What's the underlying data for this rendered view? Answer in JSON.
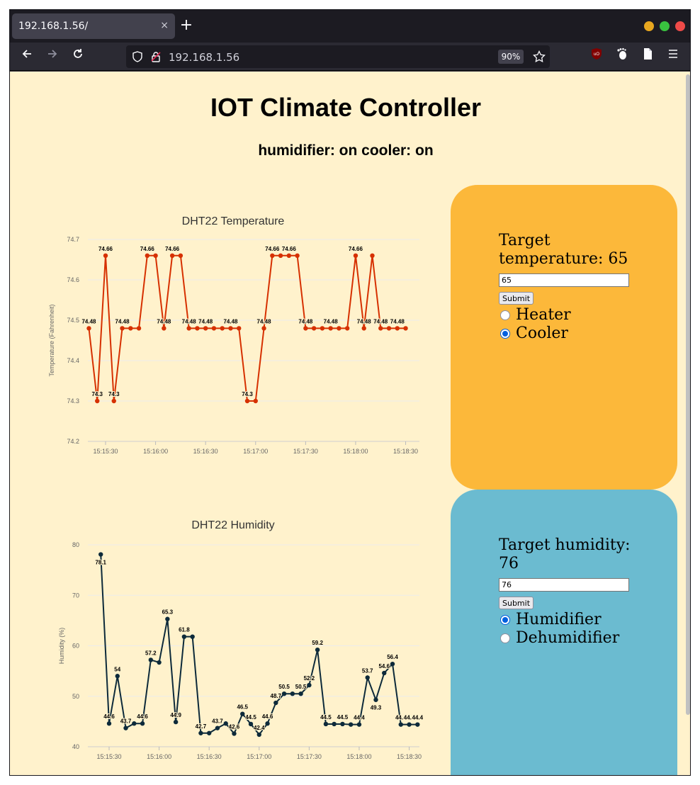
{
  "browser": {
    "tab_title": "192.168.1.56/",
    "tab_close": "×",
    "new_tab": "+",
    "url": "192.168.1.56",
    "zoom": "90%",
    "traffic_colors": [
      "#e8a71f",
      "#39c13f",
      "#ee4a48"
    ]
  },
  "page": {
    "title": "IOT Climate Controller",
    "status": "humidifier: on cooler: on",
    "background": "#fff2cc"
  },
  "temperature_panel": {
    "color": "#fcb83a",
    "label": "Target temperature: 65",
    "input_value": "65",
    "submit_label": "Submit",
    "options": [
      {
        "label": "Heater",
        "checked": false
      },
      {
        "label": "Cooler",
        "checked": true
      }
    ]
  },
  "humidity_panel": {
    "color": "#6bbbd0",
    "label": "Target humidity: 76",
    "input_value": "76",
    "submit_label": "Submit",
    "options": [
      {
        "label": "Humidifier",
        "checked": true
      },
      {
        "label": "Dehumidifier",
        "checked": false
      }
    ]
  },
  "chart_data": [
    {
      "type": "line",
      "title": "DHT22 Temperature",
      "ylabel": "Temperature (Fahrenheit)",
      "color": "#d63000",
      "ylim": [
        74.2,
        74.7
      ],
      "yticks": [
        "74.2",
        "74.3",
        "74.4",
        "74.5",
        "74.6",
        "74.7"
      ],
      "xticks": [
        "15:15:30",
        "15:16:00",
        "15:16:30",
        "15:17:00",
        "15:17:30",
        "15:18:00",
        "15:18:30"
      ],
      "x_start": "15:15:20",
      "x_step_seconds": 5,
      "values": [
        74.48,
        74.3,
        74.66,
        74.3,
        74.48,
        74.48,
        74.48,
        74.66,
        74.66,
        74.48,
        74.66,
        74.66,
        74.48,
        74.48,
        74.48,
        74.48,
        74.48,
        74.48,
        74.48,
        74.3,
        74.3,
        74.48,
        74.66,
        74.66,
        74.66,
        74.66,
        74.48,
        74.48,
        74.48,
        74.48,
        74.48,
        74.48,
        74.66,
        74.48,
        74.66,
        74.48,
        74.48,
        74.48,
        74.48
      ],
      "labels": [
        "74.48",
        "74.3",
        "74.66",
        "74.3",
        "74.48",
        "",
        "",
        "74.66",
        "",
        "74.48",
        "74.66",
        "",
        "74.48",
        "",
        "74.48",
        "",
        "",
        "74.48",
        "",
        "74.3",
        "",
        "74.48",
        "74.66",
        "",
        "74.66",
        "",
        "74.48",
        "",
        "",
        "74.48",
        "",
        "",
        "74.66",
        "74.48",
        "",
        "74.48",
        "",
        "74.48",
        ""
      ]
    },
    {
      "type": "line",
      "title": "DHT22 Humidity",
      "ylabel": "Humidity (%)",
      "color": "#0d2a3a",
      "ylim": [
        40,
        80
      ],
      "yticks": [
        "40",
        "50",
        "60",
        "70",
        "80"
      ],
      "xticks": [
        "15:15:30",
        "15:16:00",
        "15:16:30",
        "15:17:00",
        "15:17:30",
        "15:18:00",
        "15:18:30"
      ],
      "x_start": "15:15:25",
      "x_step_seconds": 5,
      "values": [
        78.1,
        44.6,
        54,
        43.7,
        44.6,
        44.6,
        57.2,
        56.7,
        65.3,
        44.9,
        61.8,
        61.8,
        42.7,
        42.7,
        43.7,
        44.6,
        42.6,
        46.5,
        44.5,
        42.4,
        44.6,
        48.7,
        50.5,
        50.5,
        50.5,
        52.2,
        59.2,
        44.5,
        44.5,
        44.5,
        44.4,
        44.4,
        53.7,
        49.3,
        54.6,
        56.4,
        44.4,
        44.4,
        44.4
      ],
      "labels": [
        "78.1",
        "44.6",
        "54",
        "43.7",
        "",
        "44.6",
        "57.2",
        "",
        "65.3",
        "44.9",
        "61.8",
        "",
        "42.7",
        "",
        "43.7",
        "",
        "42.6",
        "46.5",
        "44.5",
        "42.4",
        "44.6",
        "48.7",
        "50.5",
        "",
        "50.5",
        "52.2",
        "59.2",
        "44.5",
        "",
        "44.5",
        "",
        "44.4",
        "53.7",
        "49.3",
        "54.6",
        "56.4",
        "44.4",
        "44.4",
        "44.4"
      ]
    }
  ]
}
